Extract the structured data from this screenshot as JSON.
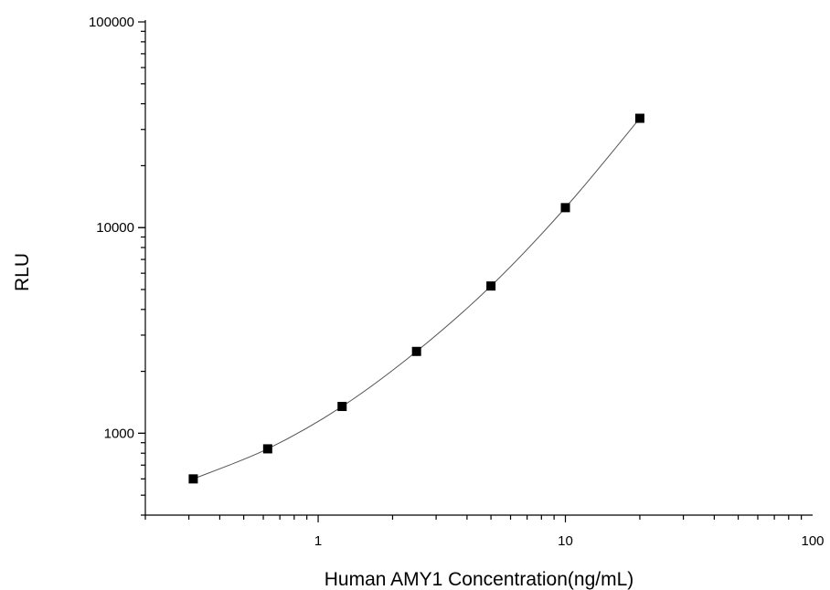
{
  "chart_data": {
    "type": "scatter",
    "title": "",
    "xlabel": "Human AMY1 Concentration(ng/mL)",
    "ylabel": "RLU",
    "x_scale": "log",
    "y_scale": "log",
    "xlim": [
      0.2,
      100
    ],
    "ylim": [
      400,
      100000
    ],
    "x_ticks": [
      {
        "value": 1,
        "label": "1"
      },
      {
        "value": 10,
        "label": "10"
      },
      {
        "value": 100,
        "label": "100"
      }
    ],
    "y_ticks": [
      {
        "value": 1000,
        "label": "1000"
      },
      {
        "value": 10000,
        "label": "10000"
      },
      {
        "value": 100000,
        "label": "100000"
      }
    ],
    "grid": false,
    "legend": "none",
    "series": [
      {
        "marker": "square",
        "fit_line": true,
        "x": [
          0.3125,
          0.625,
          1.25,
          2.5,
          5,
          10,
          20
        ],
        "y": [
          600,
          840,
          1350,
          2500,
          5200,
          12500,
          34000
        ]
      }
    ],
    "colors": {
      "marker": "#000000",
      "line": "#555555",
      "axis": "#000000"
    }
  }
}
